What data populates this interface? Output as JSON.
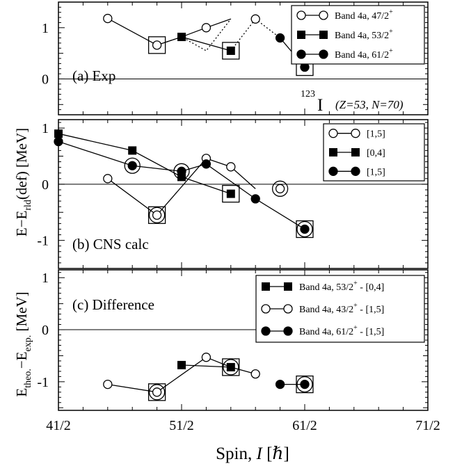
{
  "chart_data": {
    "type": "scatter",
    "xlabel": "Spin, I [ℏ]",
    "x_ticks": [
      "41/2",
      "51/2",
      "61/2",
      "71/2"
    ],
    "xlim": [
      20.5,
      35.5
    ],
    "panels": [
      {
        "id": "a",
        "label": "(a) Exp",
        "ylim": [
          -0.7,
          1.5
        ],
        "y_ticks": [
          "0",
          "1"
        ],
        "annotation": {
          "nucleus_mass": "123",
          "nucleus_symbol": "I",
          "zn": "(Z=53, N=70)"
        },
        "legend": {
          "position": "top-right",
          "entries": [
            {
              "label": "Band 4a, 47/2",
              "sup": "+",
              "marker": "open"
            },
            {
              "label": "Band 4a, 53/2",
              "sup": "+",
              "marker": "square"
            },
            {
              "label": "Band 4a, 61/2",
              "sup": "+",
              "marker": "filled"
            }
          ]
        },
        "series": [
          {
            "marker": "open",
            "line": "solid",
            "points": [
              [
                22.5,
                1.18
              ],
              [
                24.5,
                0.66
              ]
            ]
          },
          {
            "marker": "open",
            "line": "dotted",
            "points": [
              [
                24.5,
                0.66
              ],
              [
                25.5,
                0.82
              ],
              [
                26.5,
                0.55
              ],
              [
                27.5,
                1.17
              ]
            ]
          },
          {
            "marker": "open",
            "line": "solid",
            "points": [
              [
                25.5,
                0.82
              ],
              [
                26.5,
                1.0
              ],
              [
                27.5,
                1.17
              ]
            ]
          },
          {
            "marker": "square",
            "line": "solid",
            "points": [
              [
                24.5,
                0.66
              ],
              [
                25.5,
                0.82
              ],
              [
                27.5,
                0.55
              ]
            ]
          },
          {
            "marker": "square",
            "line": "dotted",
            "points": [
              [
                27.5,
                0.55
              ],
              [
                28.5,
                1.17
              ]
            ]
          },
          {
            "marker": "filled",
            "line": "dotted",
            "points": [
              [
                28.5,
                1.17
              ],
              [
                29.5,
                0.8
              ]
            ]
          },
          {
            "marker": "filled",
            "line": "solid",
            "points": [
              [
                29.5,
                0.8
              ],
              [
                30.5,
                0.23
              ]
            ]
          }
        ],
        "points": [
          {
            "x": 22.5,
            "y": 1.18,
            "marker": "open"
          },
          {
            "x": 24.5,
            "y": 0.66,
            "marker": "open",
            "box": true
          },
          {
            "x": 25.5,
            "y": 0.82,
            "marker": "square"
          },
          {
            "x": 26.5,
            "y": 1.0,
            "marker": "open"
          },
          {
            "x": 27.5,
            "y": 0.55,
            "marker": "square",
            "box": true
          },
          {
            "x": 28.5,
            "y": 1.17,
            "marker": "open"
          },
          {
            "x": 29.5,
            "y": 0.8,
            "marker": "filled"
          },
          {
            "x": 30.5,
            "y": 0.23,
            "marker": "filled",
            "box": true
          }
        ]
      },
      {
        "id": "b",
        "label": "(b) CNS calc",
        "ylim": [
          -1.5,
          1.15
        ],
        "y_ticks": [
          "-1",
          "0",
          "1"
        ],
        "legend": {
          "position": "top-right",
          "entries": [
            {
              "label": "[1,5]",
              "marker": "open"
            },
            {
              "label": "[0,4]",
              "marker": "square"
            },
            {
              "label": "[1,5]",
              "marker": "filled"
            }
          ]
        },
        "series": [
          {
            "marker": "open",
            "points": [
              [
                22.5,
                0.1
              ],
              [
                24.5,
                -0.55
              ],
              [
                26.5,
                0.46
              ],
              [
                27.5,
                0.31
              ],
              [
                28.5,
                -0.08
              ]
            ]
          },
          {
            "marker": "square",
            "points": [
              [
                20.5,
                0.9
              ],
              [
                23.5,
                0.6
              ],
              [
                25.5,
                0.13
              ],
              [
                27.5,
                -0.17
              ]
            ]
          },
          {
            "marker": "filled",
            "points": [
              [
                20.5,
                0.76
              ],
              [
                23.5,
                0.33
              ],
              [
                25.5,
                0.23
              ],
              [
                26.5,
                0.36
              ],
              [
                28.5,
                -0.26
              ],
              [
                30.5,
                -0.8
              ]
            ]
          }
        ],
        "points": [
          {
            "x": 20.5,
            "y": 0.9,
            "marker": "square"
          },
          {
            "x": 20.5,
            "y": 0.76,
            "marker": "filled"
          },
          {
            "x": 22.5,
            "y": 0.1,
            "marker": "open"
          },
          {
            "x": 23.5,
            "y": 0.6,
            "marker": "square"
          },
          {
            "x": 23.5,
            "y": 0.33,
            "marker": "filled",
            "ring": true
          },
          {
            "x": 24.5,
            "y": -0.55,
            "marker": "open",
            "box": true,
            "ring": true
          },
          {
            "x": 25.5,
            "y": 0.23,
            "marker": "filled",
            "ring": true
          },
          {
            "x": 25.5,
            "y": 0.13,
            "marker": "square"
          },
          {
            "x": 26.5,
            "y": 0.46,
            "marker": "open"
          },
          {
            "x": 26.5,
            "y": 0.36,
            "marker": "filled"
          },
          {
            "x": 27.5,
            "y": 0.31,
            "marker": "open"
          },
          {
            "x": 27.5,
            "y": -0.17,
            "marker": "square",
            "box": true
          },
          {
            "x": 28.5,
            "y": -0.26,
            "marker": "filled"
          },
          {
            "x": 29.5,
            "y": -0.08,
            "marker": "open",
            "ring": true
          },
          {
            "x": 30.5,
            "y": -0.8,
            "marker": "filled",
            "box": true,
            "ring": true
          }
        ]
      },
      {
        "id": "c",
        "label": "(c) Difference",
        "ylim": [
          -1.55,
          1.15
        ],
        "y_ticks": [
          "-1",
          "0",
          "1"
        ],
        "legend": {
          "position": "top-right",
          "entries": [
            {
              "label": "Band 4a, 53/2",
              "sup": "+",
              "suffix": " - [0,4]",
              "marker": "square"
            },
            {
              "label": "Band 4a, 43/2",
              "sup": "+",
              "suffix": " - [1,5]",
              "marker": "open"
            },
            {
              "label": "Band 4a, 61/2",
              "sup": "+",
              "suffix": " - [1,5]",
              "marker": "filled"
            }
          ]
        },
        "series": [
          {
            "marker": "square",
            "points": [
              [
                25.5,
                -0.68
              ],
              [
                27.5,
                -0.72
              ]
            ]
          },
          {
            "marker": "open",
            "points": [
              [
                22.5,
                -1.05
              ],
              [
                24.5,
                -1.2
              ],
              [
                26.5,
                -0.53
              ],
              [
                27.5,
                -0.72
              ],
              [
                28.5,
                -0.85
              ]
            ]
          },
          {
            "marker": "filled",
            "points": [
              [
                29.5,
                -1.05
              ],
              [
                30.5,
                -1.05
              ]
            ]
          }
        ],
        "points": [
          {
            "x": 22.5,
            "y": -1.05,
            "marker": "open"
          },
          {
            "x": 24.5,
            "y": -1.2,
            "marker": "open",
            "box": true,
            "ring": true
          },
          {
            "x": 25.5,
            "y": -0.68,
            "marker": "square"
          },
          {
            "x": 26.5,
            "y": -0.53,
            "marker": "open"
          },
          {
            "x": 27.5,
            "y": -0.72,
            "marker": "square",
            "box": true,
            "ring": true
          },
          {
            "x": 28.5,
            "y": -0.85,
            "marker": "open"
          },
          {
            "x": 29.5,
            "y": -1.05,
            "marker": "filled"
          },
          {
            "x": 30.5,
            "y": -1.05,
            "marker": "filled",
            "box": true,
            "ring": true
          }
        ]
      }
    ]
  },
  "y_axis_labels": {
    "top": {
      "main": "E−E",
      "sub": "rld",
      "rest": "(def) [MeV]"
    },
    "bottom": {
      "a": "E",
      "a_sub": "theo.",
      "b": "−E",
      "b_sub": "exp.",
      "rest": " [MeV]"
    }
  },
  "x_axis_label": {
    "prefix": "Spin, ",
    "italic": "I",
    "suffix": " [ℏ]"
  }
}
